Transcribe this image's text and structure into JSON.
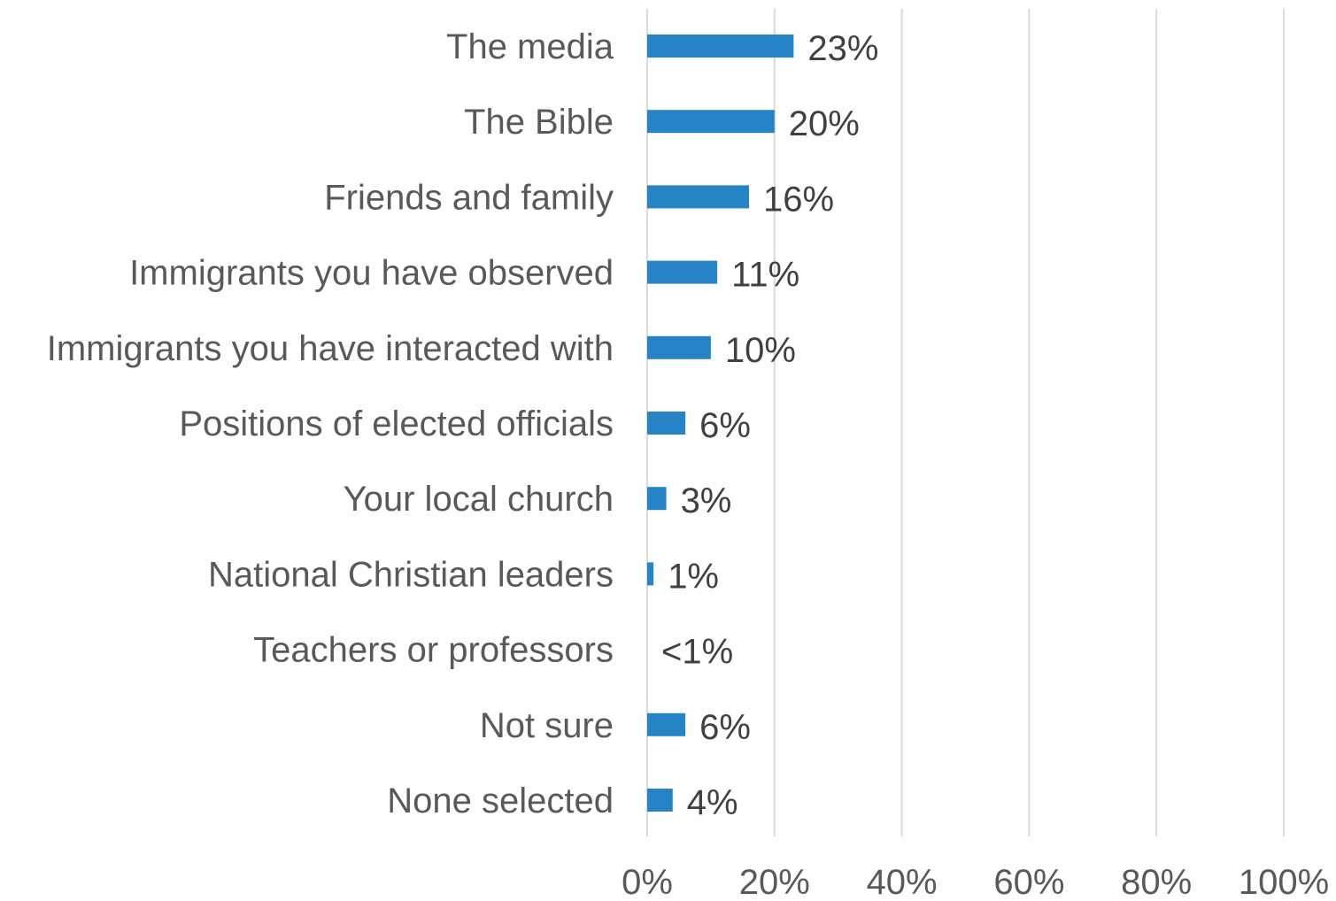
{
  "chart_data": {
    "type": "bar",
    "orientation": "horizontal",
    "categories": [
      "The media",
      "The Bible",
      "Friends and family",
      "Immigrants you have observed",
      "Immigrants you have interacted with",
      "Positions of elected officials",
      "Your local church",
      "National Christian leaders",
      "Teachers or professors",
      "Not sure",
      "None selected"
    ],
    "values": [
      23,
      20,
      16,
      11,
      10,
      6,
      3,
      1,
      0.3,
      6,
      4
    ],
    "data_labels": [
      "23%",
      "20%",
      "16%",
      "11%",
      "10%",
      "6%",
      "3%",
      "1%",
      "<1%",
      "6%",
      "4%"
    ],
    "xlim": [
      0,
      100
    ],
    "x_ticks": [
      0,
      20,
      40,
      60,
      80,
      100
    ],
    "x_tick_labels": [
      "0%",
      "20%",
      "40%",
      "60%",
      "80%",
      "100%"
    ],
    "grid": "vertical",
    "legend": "none",
    "colors": {
      "bar": "#2683c6",
      "category_text": "#595959",
      "data_label_text": "#404040",
      "gridline": "#d9d9d9"
    }
  }
}
